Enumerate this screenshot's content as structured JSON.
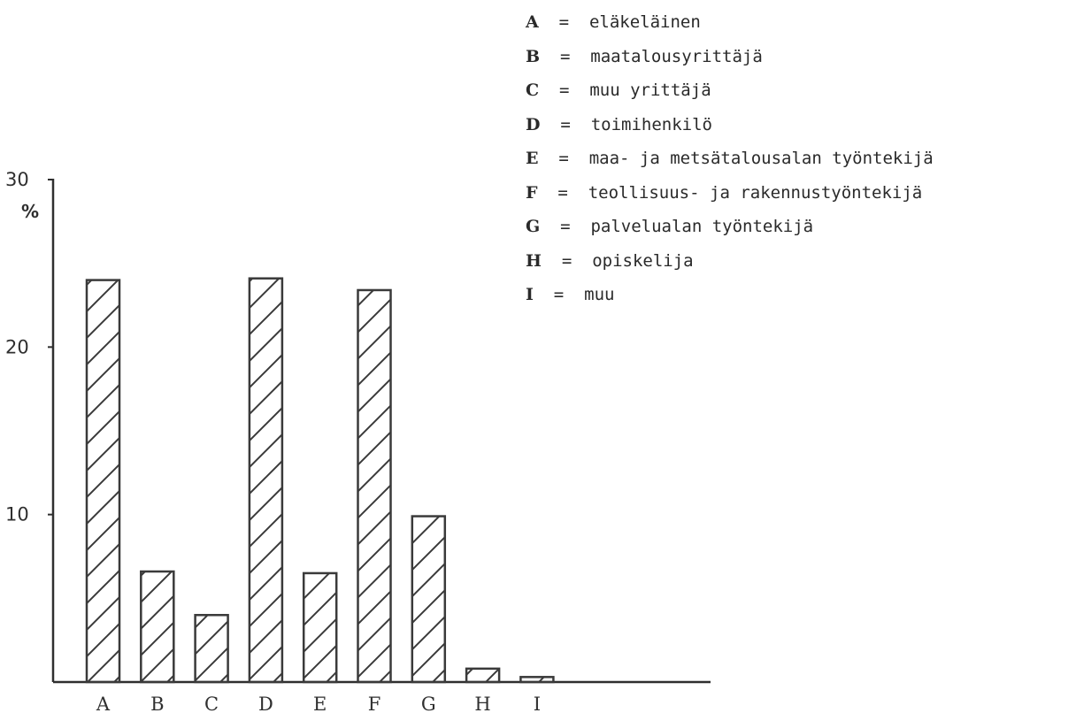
{
  "chart_data": {
    "type": "bar",
    "categories": [
      "A",
      "B",
      "C",
      "D",
      "E",
      "F",
      "G",
      "H",
      "I"
    ],
    "values": [
      24.0,
      6.6,
      4.0,
      24.1,
      6.5,
      23.4,
      9.9,
      0.8,
      0.3
    ],
    "ylabel": "%",
    "ylim": [
      0,
      30
    ],
    "yticks": [
      "10",
      "20",
      "30"
    ],
    "grid": false,
    "legend_position": "top-right",
    "bar_fill": "diagonal-hatch",
    "bar_color": "#3a3a3a",
    "legend": [
      {
        "key": "A",
        "eq": "=",
        "text": "eläkeläinen"
      },
      {
        "key": "B",
        "eq": "=",
        "text": "maatalousyrittäjä"
      },
      {
        "key": "C",
        "eq": "=",
        "text": "muu yrittäjä"
      },
      {
        "key": "D",
        "eq": "=",
        "text": "toimihenkilö"
      },
      {
        "key": "E",
        "eq": "=",
        "text": "maa- ja metsätalousalan työntekijä"
      },
      {
        "key": "F",
        "eq": "=",
        "text": "teollisuus- ja rakennustyöntekijä"
      },
      {
        "key": "G",
        "eq": "=",
        "text": "palvelualan työntekijä"
      },
      {
        "key": "H",
        "eq": "=",
        "text": "opiskelija"
      },
      {
        "key": "I",
        "eq": "=",
        "text": "muu"
      }
    ]
  }
}
